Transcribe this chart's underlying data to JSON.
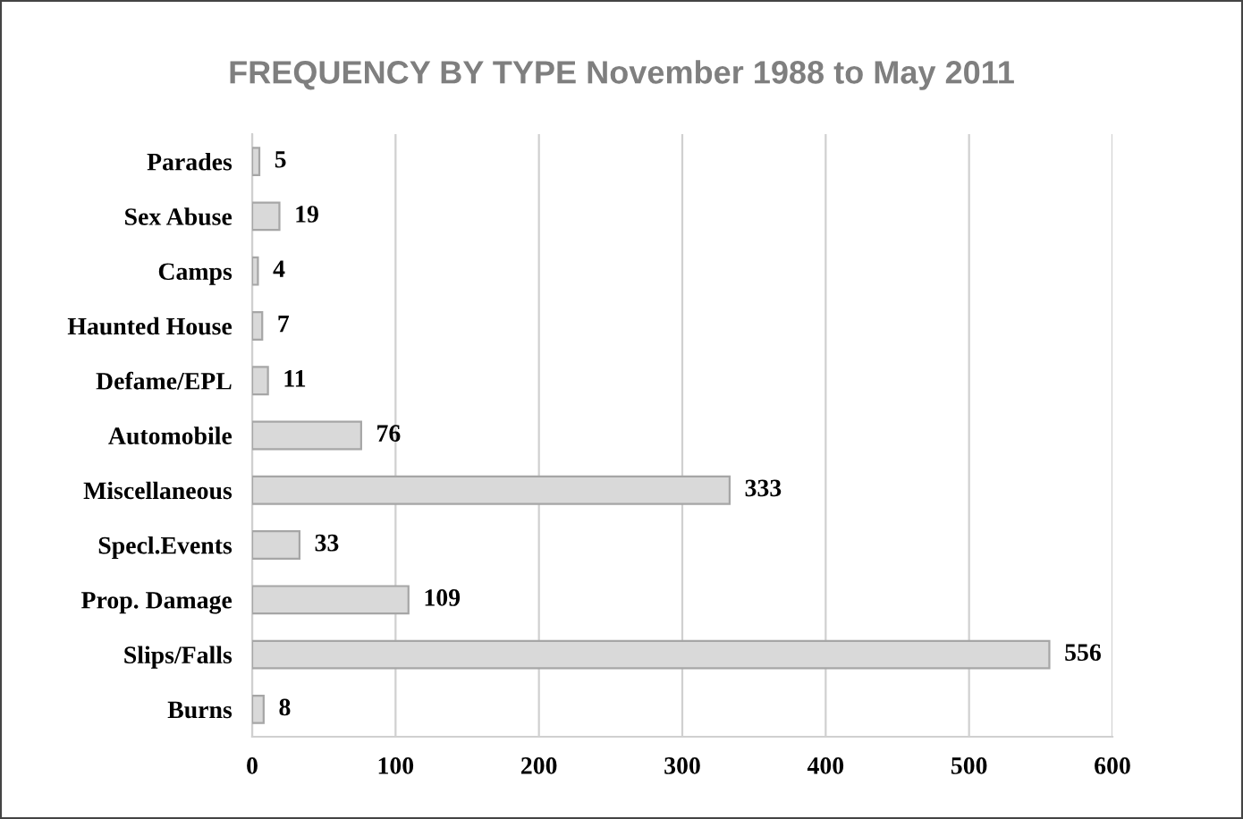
{
  "chart_data": {
    "type": "bar",
    "orientation": "horizontal",
    "title": "FREQUENCY BY TYPE November 1988 to May 2011",
    "categories": [
      "Parades",
      "Sex Abuse",
      "Camps",
      "Haunted House",
      "Defame/EPL",
      "Automobile",
      "Miscellaneous",
      "Specl.Events",
      "Prop. Damage",
      "Slips/Falls",
      "Burns"
    ],
    "values": [
      5,
      19,
      4,
      7,
      11,
      76,
      333,
      33,
      109,
      556,
      8
    ],
    "color": "#d9d9d9",
    "xlim": [
      0,
      600
    ],
    "xticks": [
      0,
      100,
      200,
      300,
      400,
      500,
      600
    ],
    "grid": "x",
    "data_labels": true
  }
}
